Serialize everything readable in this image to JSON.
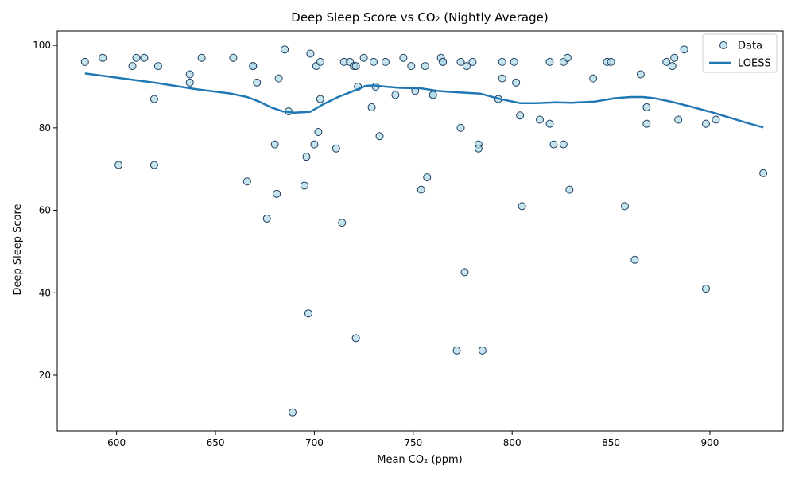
{
  "chart_data": {
    "type": "scatter",
    "title": "Deep Sleep Score vs CO₂ (Nightly Average)",
    "xlabel": "Mean CO₂ (ppm)",
    "ylabel": "Deep Sleep Score",
    "xlim": [
      570,
      937
    ],
    "ylim": [
      6.5,
      103.5
    ],
    "xticks": [
      600,
      650,
      700,
      750,
      800,
      850,
      900
    ],
    "yticks": [
      20,
      40,
      60,
      80,
      100
    ],
    "grid": false,
    "legend": {
      "placement": "top-right",
      "entries": [
        "Data",
        "LOESS"
      ]
    },
    "colors": {
      "point_fill": "#add8e6",
      "point_edge": "#1f3f5f",
      "loess": "#1f77b4"
    },
    "series": [
      {
        "name": "Data",
        "kind": "scatter",
        "points": [
          [
            584,
            96
          ],
          [
            593,
            97
          ],
          [
            601,
            71
          ],
          [
            608,
            95
          ],
          [
            610,
            97
          ],
          [
            614,
            97
          ],
          [
            619,
            87
          ],
          [
            619,
            71
          ],
          [
            621,
            95
          ],
          [
            637,
            93
          ],
          [
            637,
            91
          ],
          [
            643,
            97
          ],
          [
            659,
            97
          ],
          [
            666,
            67
          ],
          [
            669,
            95
          ],
          [
            669,
            95
          ],
          [
            671,
            91
          ],
          [
            676,
            58
          ],
          [
            680,
            76
          ],
          [
            681,
            64
          ],
          [
            682,
            92
          ],
          [
            685,
            99
          ],
          [
            687,
            84
          ],
          [
            689,
            11
          ],
          [
            695,
            66
          ],
          [
            696,
            73
          ],
          [
            697,
            35
          ],
          [
            698,
            98
          ],
          [
            700,
            76
          ],
          [
            701,
            95
          ],
          [
            702,
            79
          ],
          [
            703,
            96
          ],
          [
            703,
            87
          ],
          [
            711,
            75
          ],
          [
            714,
            57
          ],
          [
            715,
            96
          ],
          [
            718,
            96
          ],
          [
            720,
            95
          ],
          [
            721,
            95
          ],
          [
            721,
            29
          ],
          [
            722,
            90
          ],
          [
            725,
            97
          ],
          [
            729,
            85
          ],
          [
            730,
            96
          ],
          [
            731,
            90
          ],
          [
            733,
            78
          ],
          [
            736,
            96
          ],
          [
            741,
            88
          ],
          [
            745,
            97
          ],
          [
            749,
            95
          ],
          [
            751,
            89
          ],
          [
            754,
            65
          ],
          [
            756,
            95
          ],
          [
            757,
            68
          ],
          [
            760,
            88
          ],
          [
            760,
            88
          ],
          [
            764,
            97
          ],
          [
            765,
            96
          ],
          [
            765,
            96
          ],
          [
            772,
            26
          ],
          [
            774,
            96
          ],
          [
            774,
            80
          ],
          [
            776,
            45
          ],
          [
            777,
            95
          ],
          [
            780,
            96
          ],
          [
            783,
            76
          ],
          [
            783,
            75
          ],
          [
            785,
            26
          ],
          [
            793,
            87
          ],
          [
            795,
            96
          ],
          [
            795,
            92
          ],
          [
            801,
            96
          ],
          [
            802,
            91
          ],
          [
            804,
            83
          ],
          [
            805,
            61
          ],
          [
            814,
            82
          ],
          [
            819,
            96
          ],
          [
            819,
            81
          ],
          [
            821,
            76
          ],
          [
            826,
            76
          ],
          [
            826,
            96
          ],
          [
            828,
            97
          ],
          [
            829,
            65
          ],
          [
            841,
            92
          ],
          [
            848,
            96
          ],
          [
            850,
            96
          ],
          [
            857,
            61
          ],
          [
            862,
            48
          ],
          [
            865,
            93
          ],
          [
            868,
            85
          ],
          [
            868,
            81
          ],
          [
            878,
            96
          ],
          [
            881,
            95
          ],
          [
            882,
            97
          ],
          [
            884,
            82
          ],
          [
            887,
            99
          ],
          [
            898,
            81
          ],
          [
            898,
            41
          ],
          [
            903,
            82
          ],
          [
            927,
            69
          ]
        ]
      },
      {
        "name": "LOESS",
        "kind": "line",
        "points": [
          [
            584,
            93.2
          ],
          [
            600,
            92.2
          ],
          [
            620,
            90.9
          ],
          [
            640,
            89.4
          ],
          [
            658,
            88.3
          ],
          [
            666,
            87.5
          ],
          [
            672,
            86.4
          ],
          [
            678,
            85.0
          ],
          [
            684,
            84.0
          ],
          [
            690,
            83.7
          ],
          [
            698,
            83.9
          ],
          [
            704,
            85.6
          ],
          [
            712,
            87.5
          ],
          [
            720,
            89.0
          ],
          [
            726,
            90.2
          ],
          [
            730,
            90.3
          ],
          [
            736,
            90.0
          ],
          [
            744,
            89.7
          ],
          [
            754,
            89.6
          ],
          [
            762,
            89.0
          ],
          [
            770,
            88.7
          ],
          [
            784,
            88.3
          ],
          [
            794,
            87.0
          ],
          [
            804,
            86.0
          ],
          [
            812,
            86.0
          ],
          [
            822,
            86.2
          ],
          [
            830,
            86.1
          ],
          [
            842,
            86.4
          ],
          [
            852,
            87.2
          ],
          [
            860,
            87.5
          ],
          [
            866,
            87.5
          ],
          [
            872,
            87.2
          ],
          [
            880,
            86.4
          ],
          [
            890,
            85.2
          ],
          [
            900,
            83.9
          ],
          [
            910,
            82.5
          ],
          [
            918,
            81.3
          ],
          [
            927,
            80.1
          ]
        ]
      }
    ]
  }
}
